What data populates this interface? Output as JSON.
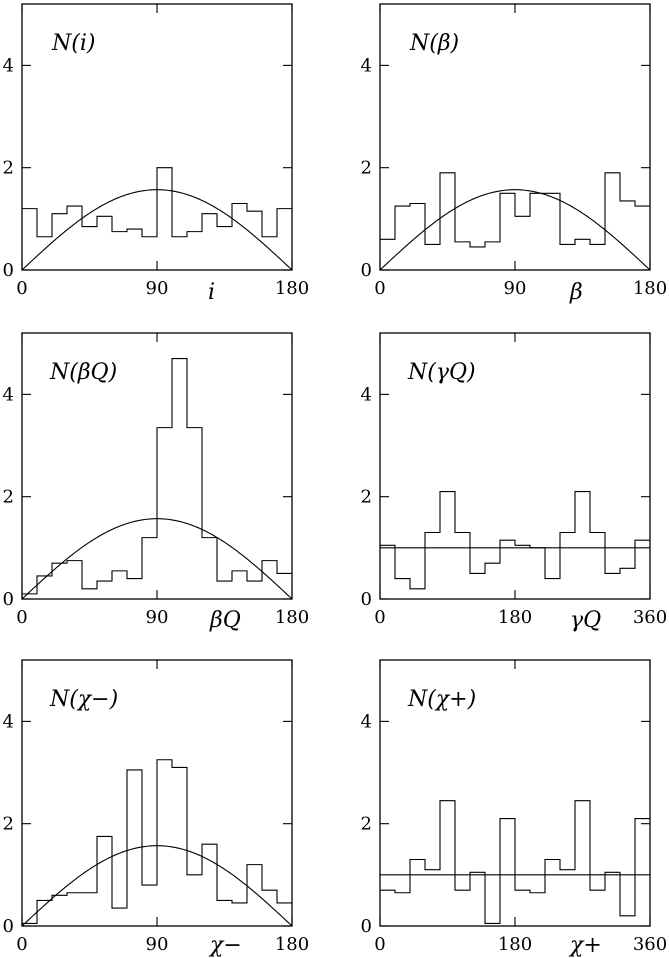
{
  "chart_data": [
    {
      "type": "bar",
      "title": "N(i)",
      "xlabel": "i",
      "ylabel": "",
      "xlim": [
        0,
        180
      ],
      "ylim": [
        0,
        5.2
      ],
      "xticks": [
        "0",
        "90",
        "180"
      ],
      "yticks": [
        "0",
        "2",
        "4"
      ],
      "bin_edges": [
        0,
        10,
        20,
        30,
        40,
        50,
        60,
        70,
        80,
        90,
        100,
        110,
        120,
        130,
        140,
        150,
        160,
        170,
        180
      ],
      "values": [
        1.2,
        0.65,
        1.1,
        1.25,
        0.85,
        1.05,
        0.75,
        0.8,
        0.65,
        2.0,
        0.65,
        0.75,
        1.1,
        0.85,
        1.3,
        1.15,
        0.65,
        1.2
      ],
      "reference": {
        "kind": "sine",
        "amplitude": 1.57
      }
    },
    {
      "type": "bar",
      "title": "N(β)",
      "xlabel": "β",
      "ylabel": "",
      "xlim": [
        0,
        180
      ],
      "ylim": [
        0,
        5.2
      ],
      "xticks": [
        "0",
        "90",
        "180"
      ],
      "yticks": [
        "0",
        "2",
        "4"
      ],
      "bin_edges": [
        0,
        10,
        20,
        30,
        40,
        50,
        60,
        70,
        80,
        90,
        100,
        110,
        120,
        130,
        140,
        150,
        160,
        170,
        180
      ],
      "values": [
        0.6,
        1.25,
        1.3,
        0.5,
        1.9,
        0.55,
        0.45,
        0.55,
        1.5,
        1.05,
        1.5,
        1.5,
        0.5,
        0.6,
        0.5,
        1.9,
        1.35,
        1.25
      ],
      "reference": {
        "kind": "sine",
        "amplitude": 1.57
      }
    },
    {
      "type": "bar",
      "title": "N(βQ)",
      "xlabel": "βQ",
      "ylabel": "",
      "xlim": [
        0,
        180
      ],
      "ylim": [
        0,
        5.2
      ],
      "xticks": [
        "0",
        "90",
        "180"
      ],
      "yticks": [
        "0",
        "2",
        "4"
      ],
      "bin_edges": [
        0,
        10,
        20,
        30,
        40,
        50,
        60,
        70,
        80,
        90,
        100,
        110,
        120,
        130,
        140,
        150,
        160,
        170,
        180
      ],
      "values": [
        0.1,
        0.45,
        0.7,
        0.75,
        0.2,
        0.35,
        0.55,
        0.4,
        1.2,
        3.35,
        4.7,
        3.35,
        1.2,
        0.35,
        0.55,
        0.35,
        0.75,
        0.5
      ],
      "reference": {
        "kind": "sine",
        "amplitude": 1.57
      }
    },
    {
      "type": "bar",
      "title": "N(γQ)",
      "xlabel": "γQ",
      "ylabel": "",
      "xlim": [
        0,
        360
      ],
      "ylim": [
        0,
        5.2
      ],
      "xticks": [
        "0",
        "180",
        "360"
      ],
      "yticks": [
        "0",
        "2",
        "4"
      ],
      "bin_edges": [
        0,
        20,
        40,
        60,
        80,
        100,
        120,
        140,
        160,
        180,
        200,
        220,
        240,
        260,
        280,
        300,
        320,
        340,
        360
      ],
      "values": [
        1.05,
        0.4,
        0.2,
        1.3,
        2.1,
        1.3,
        0.5,
        0.7,
        1.15,
        1.05,
        1.0,
        0.4,
        1.3,
        2.1,
        1.3,
        0.5,
        0.6,
        1.15
      ],
      "reference": {
        "kind": "constant",
        "value": 1.0
      }
    },
    {
      "type": "bar",
      "title": "N(χ−)",
      "xlabel": "χ−",
      "ylabel": "",
      "xlim": [
        0,
        180
      ],
      "ylim": [
        0,
        5.2
      ],
      "xticks": [
        "0",
        "90",
        "180"
      ],
      "yticks": [
        "0",
        "2",
        "4"
      ],
      "bin_edges": [
        0,
        10,
        20,
        30,
        40,
        50,
        60,
        70,
        80,
        90,
        100,
        110,
        120,
        130,
        140,
        150,
        160,
        170,
        180
      ],
      "values": [
        0.05,
        0.5,
        0.6,
        0.65,
        0.65,
        1.75,
        0.35,
        3.05,
        0.8,
        3.25,
        3.1,
        1.0,
        1.6,
        0.5,
        0.45,
        1.2,
        0.7,
        0.45
      ],
      "reference": {
        "kind": "sine",
        "amplitude": 1.57
      }
    },
    {
      "type": "bar",
      "title": "N(χ+)",
      "xlabel": "χ+",
      "ylabel": "",
      "xlim": [
        0,
        360
      ],
      "ylim": [
        0,
        5.2
      ],
      "xticks": [
        "0",
        "180",
        "360"
      ],
      "yticks": [
        "0",
        "2",
        "4"
      ],
      "bin_edges": [
        0,
        20,
        40,
        60,
        80,
        100,
        120,
        140,
        160,
        180,
        200,
        220,
        240,
        260,
        280,
        300,
        320,
        340,
        360
      ],
      "values": [
        0.7,
        0.65,
        1.3,
        1.1,
        2.45,
        0.7,
        1.05,
        0.05,
        2.1,
        0.7,
        0.65,
        1.3,
        1.1,
        2.45,
        0.7,
        1.05,
        0.2,
        2.1
      ],
      "reference": {
        "kind": "constant",
        "value": 1.0
      }
    }
  ]
}
